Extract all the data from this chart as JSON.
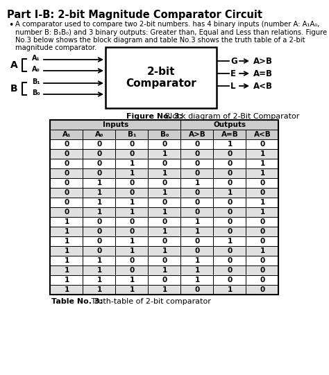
{
  "title": "Part I-B: 2-bit Magnitude Comparator Circuit",
  "bullet_text_lines": [
    "A comparator used to compare two 2-bit numbers. has 4 binary inputs (number A: A₁A₀,",
    "number B: B₁B₀) and 3 binary outputs: Greater than, Equal and Less than relations. Figure",
    "No.3 below shows the block diagram and table No.3 shows the truth table of a 2-bit",
    "magnitude comparator."
  ],
  "figure_caption_bold": "Figure No. 3:",
  "figure_caption_normal": " Block diagram of 2-Bit Comparator",
  "table_caption_bold": "Table No. 3:",
  "table_caption_normal": " Truth-table of 2-bit comparator",
  "box_label_line1": "2-bit",
  "box_label_line2": "Comparator",
  "input_labels": [
    "A₁",
    "A₀",
    "B₁",
    "B₀"
  ],
  "group_a_label": "A",
  "group_b_label": "B",
  "output_port_labels": [
    "G",
    "E",
    "L"
  ],
  "output_texts": [
    "A>B",
    "A=B",
    "A<B"
  ],
  "table_headers": [
    "A₁",
    "A₀",
    "B₁",
    "B₀",
    "A>B",
    "A=B",
    "A<B"
  ],
  "table_group_headers": [
    "Inputs",
    "Outputs"
  ],
  "table_data": [
    [
      0,
      0,
      0,
      0,
      0,
      1,
      0
    ],
    [
      0,
      0,
      0,
      1,
      0,
      0,
      1
    ],
    [
      0,
      0,
      1,
      0,
      0,
      0,
      1
    ],
    [
      0,
      0,
      1,
      1,
      0,
      0,
      1
    ],
    [
      0,
      1,
      0,
      0,
      1,
      0,
      0
    ],
    [
      0,
      1,
      0,
      1,
      0,
      1,
      0
    ],
    [
      0,
      1,
      1,
      0,
      0,
      0,
      1
    ],
    [
      0,
      1,
      1,
      1,
      0,
      0,
      1
    ],
    [
      1,
      0,
      0,
      0,
      1,
      0,
      0
    ],
    [
      1,
      0,
      0,
      1,
      1,
      0,
      0
    ],
    [
      1,
      0,
      1,
      0,
      0,
      1,
      0
    ],
    [
      1,
      0,
      1,
      1,
      0,
      0,
      1
    ],
    [
      1,
      1,
      0,
      0,
      1,
      0,
      0
    ],
    [
      1,
      1,
      0,
      1,
      1,
      0,
      0
    ],
    [
      1,
      1,
      1,
      0,
      1,
      0,
      0
    ],
    [
      1,
      1,
      1,
      1,
      0,
      1,
      0
    ]
  ],
  "bg_color": "#ffffff",
  "table_header_bg": "#cccccc",
  "table_alt_row_bg": "#e0e0e0",
  "table_white_row_bg": "#ffffff"
}
